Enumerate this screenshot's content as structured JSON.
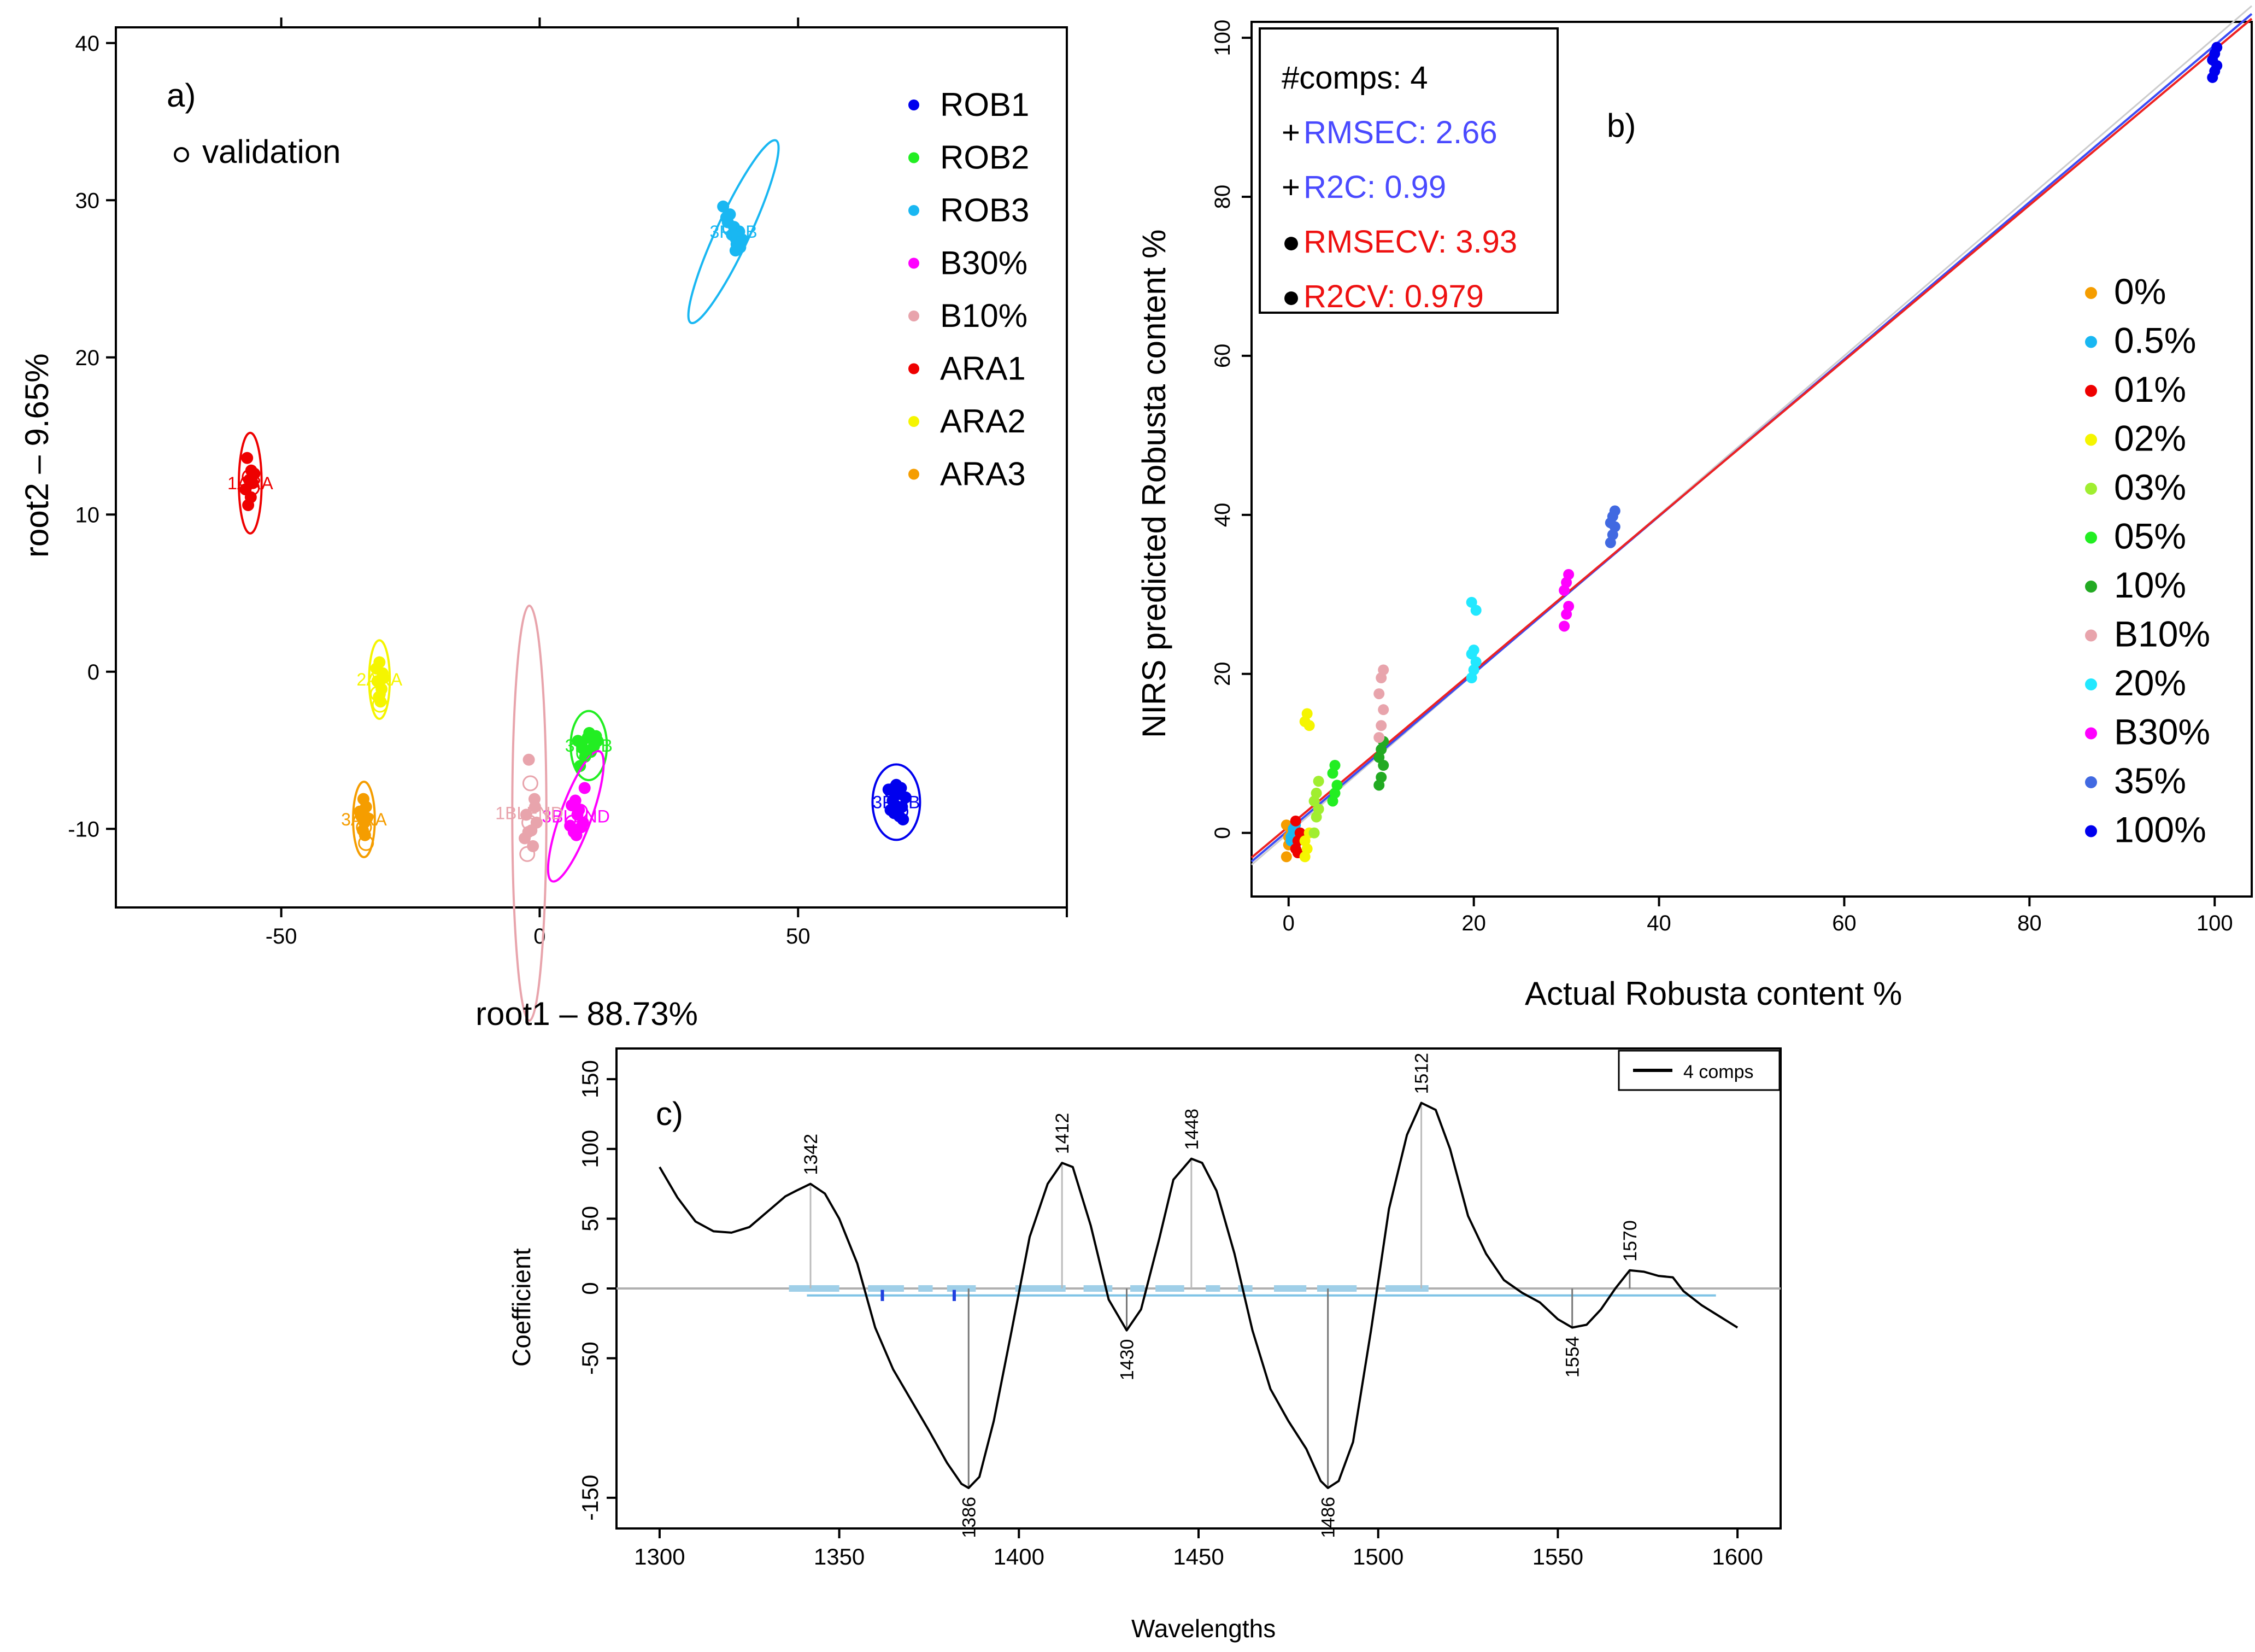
{
  "chart_data": [
    {
      "type": "scatter",
      "panel": "a)",
      "subtitle": "validation",
      "xlabel": "root1 – 88.73%",
      "ylabel": "root2 – 9.65%",
      "xlim": [
        -82,
        102
      ],
      "ylim": [
        -15,
        41
      ],
      "xticks": [
        -50,
        0,
        50
      ],
      "yticks": [
        -10,
        0,
        10,
        20,
        30,
        40
      ],
      "groups": [
        {
          "name": "ROB1",
          "label": "3ROB",
          "color": "#0000ee",
          "center": [
            69,
            -8.3
          ],
          "ellipse": [
            4.6,
            2.4,
            0
          ],
          "points": [
            [
              67.5,
              -7.5
            ],
            [
              68.3,
              -8.2
            ],
            [
              69.2,
              -7.8
            ],
            [
              70.1,
              -8.6
            ],
            [
              69.6,
              -9.2
            ],
            [
              68.6,
              -9.0
            ],
            [
              70.8,
              -8.0
            ],
            [
              67.9,
              -8.8
            ],
            [
              69.0,
              -7.2
            ],
            [
              70.3,
              -9.4
            ],
            [
              68.8,
              -8.5
            ],
            [
              69.9,
              -7.4
            ]
          ]
        },
        {
          "name": "ROB2",
          "label": "3ROB",
          "color": "#22ee22",
          "center": [
            9.5,
            -4.7
          ],
          "ellipse": [
            3.5,
            2.2,
            0
          ],
          "points": [
            [
              7.4,
              -4.4
            ],
            [
              8.4,
              -4.9
            ],
            [
              9.3,
              -4.2
            ],
            [
              10.4,
              -4.8
            ],
            [
              11.2,
              -4.4
            ],
            [
              8.8,
              -5.4
            ],
            [
              7.8,
              -6.0
            ],
            [
              9.9,
              -5.1
            ],
            [
              10.9,
              -4.1
            ],
            [
              8.1,
              -4.6
            ],
            [
              9.6,
              -3.9
            ]
          ]
        },
        {
          "name": "ROB3",
          "label": "3ROB",
          "color": "#19b7f2",
          "center": [
            37.5,
            28
          ],
          "ellipse": [
            3.2,
            6.4,
            25
          ],
          "points": [
            [
              35.5,
              29.6
            ],
            [
              36.4,
              28.6
            ],
            [
              37.2,
              27.8
            ],
            [
              38.1,
              27.2
            ],
            [
              37.6,
              28.3
            ],
            [
              36.8,
              29.1
            ],
            [
              38.6,
              28.0
            ],
            [
              39.2,
              27.5
            ],
            [
              37.9,
              26.8
            ],
            [
              38.8,
              27.0
            ],
            [
              36.1,
              28.9
            ]
          ]
        },
        {
          "name": "B30%",
          "label": "3BLEND",
          "color": "#ff00ff",
          "center": [
            7,
            -9.2
          ],
          "ellipse": [
            3.0,
            4.4,
            20
          ],
          "points": [
            [
              6.2,
              -8.5
            ],
            [
              7.3,
              -9.1
            ],
            [
              8.4,
              -9.6
            ],
            [
              6.6,
              -10.2
            ],
            [
              7.6,
              -8.8
            ],
            [
              8.7,
              -7.4
            ],
            [
              5.9,
              -9.8
            ],
            [
              7.1,
              -10.4
            ],
            [
              8.0,
              -9.9
            ],
            [
              6.9,
              -8.2
            ]
          ]
        },
        {
          "name": "B10%",
          "label": "1BLEND",
          "color": "#e8a4ac",
          "center": [
            -2,
            -9
          ],
          "ellipse": [
            3.3,
            13.2,
            0
          ],
          "points": [
            [
              -2.1,
              -5.6
            ],
            [
              -1.0,
              -8.1
            ],
            [
              -2.6,
              -9.1
            ],
            [
              -1.6,
              -10.1
            ],
            [
              -0.6,
              -9.6
            ],
            [
              -2.9,
              -10.6
            ],
            [
              -1.3,
              -11.1
            ],
            [
              -0.9,
              -8.6
            ],
            [
              -2.2,
              -10.2
            ]
          ]
        },
        {
          "name": "ARA1",
          "label": "1ARA",
          "color": "#ee0000",
          "center": [
            -56,
            12
          ],
          "ellipse": [
            2.2,
            3.2,
            0
          ],
          "points": [
            [
              -56.6,
              13.6
            ],
            [
              -55.8,
              12.8
            ],
            [
              -56.2,
              12.2
            ],
            [
              -55.5,
              12.0
            ],
            [
              -56.9,
              11.6
            ],
            [
              -55.9,
              11.1
            ],
            [
              -56.4,
              10.6
            ],
            [
              -55.2,
              12.6
            ]
          ]
        },
        {
          "name": "ARA2",
          "label": "2ARA",
          "color": "#f5f500",
          "center": [
            -31,
            -0.5
          ],
          "ellipse": [
            2.0,
            2.5,
            0
          ],
          "points": [
            [
              -31.0,
              0.6
            ],
            [
              -30.4,
              -0.1
            ],
            [
              -31.4,
              -0.6
            ],
            [
              -30.6,
              -1.1
            ],
            [
              -31.1,
              -1.6
            ],
            [
              -30.2,
              -0.4
            ],
            [
              -31.6,
              0.2
            ],
            [
              -30.8,
              -1.9
            ]
          ]
        },
        {
          "name": "ARA3",
          "label": "3ARA",
          "color": "#f59d00",
          "center": [
            -34,
            -9.4
          ],
          "ellipse": [
            2.1,
            2.4,
            0
          ],
          "points": [
            [
              -34.1,
              -8.1
            ],
            [
              -33.6,
              -8.6
            ],
            [
              -34.5,
              -9.2
            ],
            [
              -33.9,
              -9.6
            ],
            [
              -34.2,
              -10.1
            ],
            [
              -33.4,
              -9.3
            ],
            [
              -34.8,
              -8.9
            ],
            [
              -33.8,
              -10.4
            ]
          ]
        }
      ],
      "validation_points": [
        [
          69.8,
          -8.9
        ],
        [
          68.2,
          -7.6
        ],
        [
          8.6,
          -5.2
        ],
        [
          10.1,
          -4.6
        ],
        [
          38.3,
          27.6
        ],
        [
          36.9,
          28.2
        ],
        [
          7.8,
          -8.9
        ],
        [
          6.4,
          -9.6
        ],
        [
          -1.8,
          -7.1
        ],
        [
          -2.4,
          -11.6
        ],
        [
          -2.0,
          -9.6
        ],
        [
          -56.1,
          12.4
        ],
        [
          -55.7,
          11.7
        ],
        [
          -30.9,
          -2.1
        ],
        [
          -31.3,
          -1.4
        ],
        [
          -34.0,
          -9.9
        ],
        [
          -33.6,
          -10.9
        ]
      ]
    },
    {
      "type": "scatter",
      "panel": "b)",
      "xlabel": "Actual Robusta content %",
      "ylabel": "NIRS predicted Robusta content %",
      "xlim": [
        -4,
        104
      ],
      "ylim": [
        -8,
        102
      ],
      "xticks": [
        0,
        20,
        40,
        60,
        80,
        100
      ],
      "yticks": [
        0,
        20,
        40,
        60,
        80,
        100
      ],
      "stats": [
        {
          "marker": "",
          "text": "#comps: 4",
          "color": "#000000"
        },
        {
          "marker": "+",
          "text": "RMSEC: 2.66",
          "color": "#4a4aff"
        },
        {
          "marker": "+",
          "text": "R2C: 0.99",
          "color": "#4a4aff"
        },
        {
          "marker": "●",
          "text": "RMSECV: 3.93",
          "color": "#ee1111"
        },
        {
          "marker": "●",
          "text": "R2CV: 0.979",
          "color": "#ee1111"
        }
      ],
      "fit_lines": [
        {
          "name": "calibration",
          "color": "#3b4cf5",
          "x": [
            -4,
            104
          ],
          "y": [
            -3.6,
            103.0
          ]
        },
        {
          "name": "cross-validation",
          "color": "#ee2222",
          "x": [
            -4,
            104
          ],
          "y": [
            -3.1,
            102.4
          ]
        }
      ],
      "series": [
        {
          "name": "0%",
          "x": 0,
          "color": "#f59d00",
          "values": [
            -3.0,
            -1.5,
            0.5,
            1.0,
            -0.5
          ]
        },
        {
          "name": "0.5%",
          "x": 0.5,
          "color": "#19b7f2",
          "values": [
            -1.0,
            0.0,
            1.0,
            -0.5,
            0.5
          ]
        },
        {
          "name": "01%",
          "x": 1,
          "color": "#ee0000",
          "values": [
            -2.0,
            -1.0,
            0.0,
            1.5,
            -2.5
          ]
        },
        {
          "name": "02%",
          "x": 2,
          "color": "#f5f500",
          "values": [
            14.0,
            15.0,
            13.5,
            -3.0,
            -2.0,
            0.0,
            -1.0
          ]
        },
        {
          "name": "03%",
          "x": 3,
          "color": "#a0ee30",
          "values": [
            0.0,
            2.0,
            3.0,
            4.0,
            5.0,
            6.5
          ]
        },
        {
          "name": "05%",
          "x": 5,
          "color": "#22ee22",
          "values": [
            4.0,
            5.0,
            6.0,
            7.5,
            8.5
          ]
        },
        {
          "name": "10%",
          "x": 10,
          "color": "#22aa22",
          "values": [
            6.0,
            7.0,
            8.5,
            9.5,
            10.5,
            11.5
          ]
        },
        {
          "name": "B10%",
          "x": 10,
          "color": "#e8a4ac",
          "values": [
            12.0,
            13.5,
            15.5,
            17.5,
            19.5,
            20.5
          ]
        },
        {
          "name": "20%",
          "x": 20,
          "color": "#22e8ff",
          "values": [
            19.5,
            20.5,
            21.5,
            22.5,
            23.0,
            28.0,
            29.0
          ]
        },
        {
          "name": "B30%",
          "x": 30,
          "color": "#ff00ff",
          "values": [
            26.0,
            27.5,
            28.5,
            30.5,
            31.5,
            32.5
          ]
        },
        {
          "name": "35%",
          "x": 35,
          "color": "#4169e1",
          "values": [
            36.5,
            37.5,
            38.5,
            39.0,
            39.8,
            40.5
          ]
        },
        {
          "name": "100%",
          "x": 100,
          "color": "#0000ee",
          "values": [
            95.0,
            95.8,
            96.5,
            97.2,
            98.0,
            98.8
          ]
        }
      ]
    },
    {
      "type": "line",
      "panel": "c)",
      "xlabel": "Wavelengths",
      "ylabel": "Coefficient",
      "xlim": [
        1288,
        1612
      ],
      "ylim": [
        -172,
        172
      ],
      "xticks": [
        1300,
        1350,
        1400,
        1450,
        1500,
        1550,
        1600
      ],
      "yticks": [
        -150,
        -50,
        0,
        50,
        100,
        150
      ],
      "legend": "4 comps",
      "x": [
        1300,
        1305,
        1310,
        1315,
        1320,
        1325,
        1330,
        1335,
        1338,
        1342,
        1346,
        1350,
        1355,
        1360,
        1365,
        1370,
        1375,
        1380,
        1384,
        1386,
        1389,
        1393,
        1398,
        1403,
        1408,
        1412,
        1415,
        1420,
        1425,
        1430,
        1434,
        1439,
        1443,
        1448,
        1451,
        1455,
        1460,
        1465,
        1470,
        1475,
        1480,
        1484,
        1486,
        1489,
        1493,
        1498,
        1503,
        1508,
        1512,
        1516,
        1520,
        1525,
        1530,
        1535,
        1540,
        1545,
        1550,
        1554,
        1558,
        1562,
        1566,
        1570,
        1574,
        1578,
        1582,
        1585,
        1590,
        1595,
        1600
      ],
      "y": [
        87,
        65,
        48,
        41,
        40,
        44,
        55,
        66,
        70,
        75,
        68,
        50,
        18,
        -28,
        -58,
        -80,
        -102,
        -125,
        -140,
        -143,
        -135,
        -95,
        -30,
        37,
        75,
        90,
        87,
        45,
        -8,
        -30,
        -15,
        35,
        78,
        93,
        90,
        70,
        25,
        -30,
        -72,
        -95,
        -115,
        -138,
        -143,
        -138,
        -110,
        -30,
        57,
        110,
        133,
        128,
        100,
        52,
        25,
        6,
        -3,
        -10,
        -22,
        -28,
        -26,
        -15,
        0,
        13,
        12,
        9,
        8,
        -2,
        -12,
        -20,
        -28
      ],
      "peaks": [
        {
          "x": 1342,
          "y": 75,
          "label": "1342"
        },
        {
          "x": 1386,
          "y": -143,
          "label": "1386"
        },
        {
          "x": 1412,
          "y": 90,
          "label": "1412"
        },
        {
          "x": 1430,
          "y": -30,
          "label": "1430"
        },
        {
          "x": 1448,
          "y": 93,
          "label": "1448"
        },
        {
          "x": 1486,
          "y": -143,
          "label": "1486"
        },
        {
          "x": 1512,
          "y": 133,
          "label": "1512"
        },
        {
          "x": 1554,
          "y": -28,
          "label": "1554"
        },
        {
          "x": 1570,
          "y": 13,
          "label": "1570"
        }
      ],
      "selected_bands": [
        [
          1336,
          1350
        ],
        [
          1358,
          1368
        ],
        [
          1372,
          1376
        ],
        [
          1380,
          1388
        ],
        [
          1399,
          1413
        ],
        [
          1418,
          1426
        ],
        [
          1431,
          1435
        ],
        [
          1438,
          1446
        ],
        [
          1452,
          1456
        ],
        [
          1461,
          1465
        ],
        [
          1471,
          1480
        ],
        [
          1483,
          1494
        ],
        [
          1502,
          1514
        ]
      ],
      "band_line": {
        "from": 1341,
        "to": 1594,
        "y": -5
      }
    }
  ]
}
